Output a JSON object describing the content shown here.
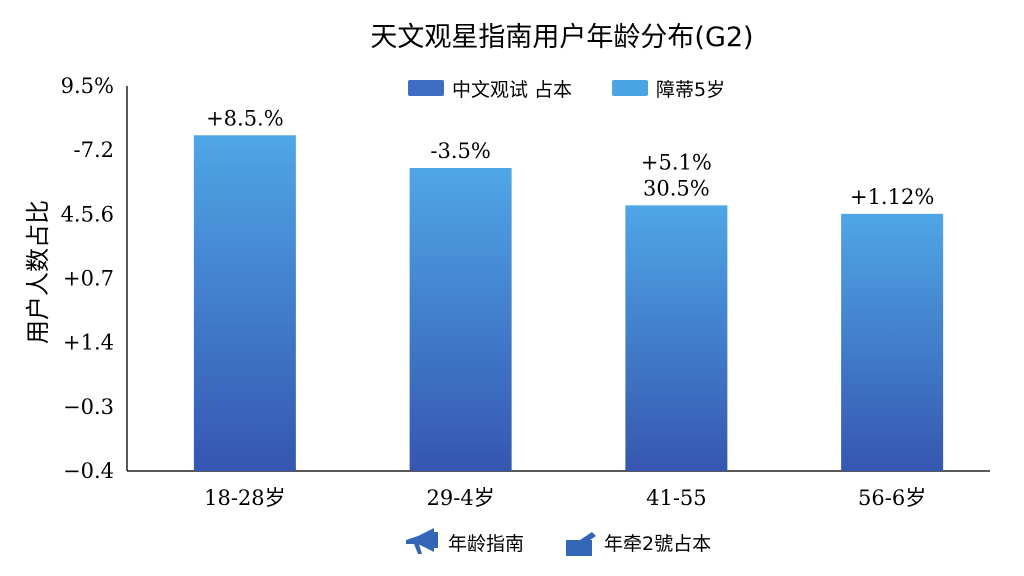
{
  "chart_data": {
    "type": "bar",
    "title": "天文观星指南用户年龄分布(G2)",
    "ylabel": "用户人数占比",
    "y_ticks": [
      "9.5%",
      "-7.2",
      "4.5.6",
      "+0.7",
      "+1.4",
      "−0.3",
      "−0.4"
    ],
    "categories": [
      "18-28岁",
      "29-4岁",
      "41-55",
      "56-6岁"
    ],
    "values": [
      0.872,
      0.787,
      0.69,
      0.668
    ],
    "data_labels": [
      [
        "+8.5.%"
      ],
      [
        "-3.5%"
      ],
      [
        "+5.1%",
        "30.5%"
      ],
      [
        "+1.12%"
      ]
    ],
    "ylim": [
      0,
      1
    ],
    "grid": false,
    "legend_top": [
      {
        "label": "中文观试 占本",
        "color": "#3f6fc4"
      },
      {
        "label": "障蒂5岁",
        "color": "#4aa3e2"
      }
    ],
    "legend_bottom": [
      {
        "label": "年龄指南",
        "icon": "megaphone-icon",
        "color": "#3466b8"
      },
      {
        "label": "年牵2號占本",
        "icon": "bar-chart-icon",
        "color": "#3466b8"
      }
    ],
    "colors": {
      "bar_top": "#4fa6e6",
      "bar_bottom": "#3556b0",
      "axis": "#222222"
    }
  }
}
